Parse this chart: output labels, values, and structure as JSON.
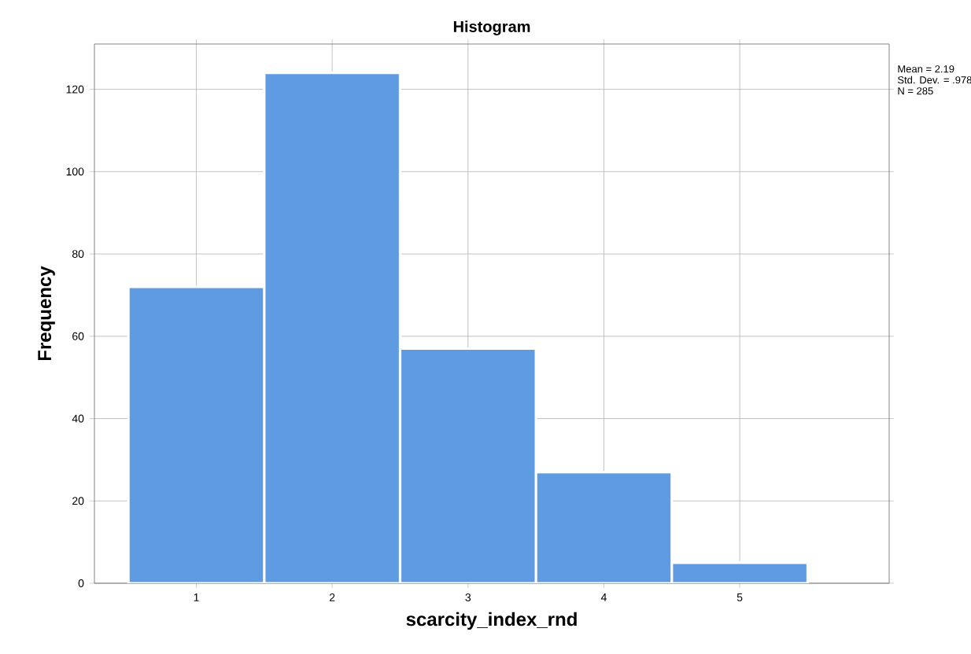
{
  "chart_data": {
    "type": "histogram",
    "title": "Histogram",
    "xlabel": "scarcity_index_rnd",
    "ylabel": "Frequency",
    "bins": [
      0.5,
      1.5,
      2.5,
      3.5,
      4.5,
      5.5
    ],
    "values": [
      72,
      124,
      57,
      27,
      5
    ],
    "color": "#5f9be3",
    "xlim": [
      0.25,
      6.1
    ],
    "ylim": [
      0,
      131
    ],
    "xticks": [
      1,
      2,
      3,
      4,
      5
    ],
    "yticks": [
      0,
      20,
      40,
      60,
      80,
      100,
      120
    ],
    "grid": true,
    "annotations": [
      "Mean = 2.19",
      "Std. Dev. = .978",
      "N = 285"
    ]
  }
}
